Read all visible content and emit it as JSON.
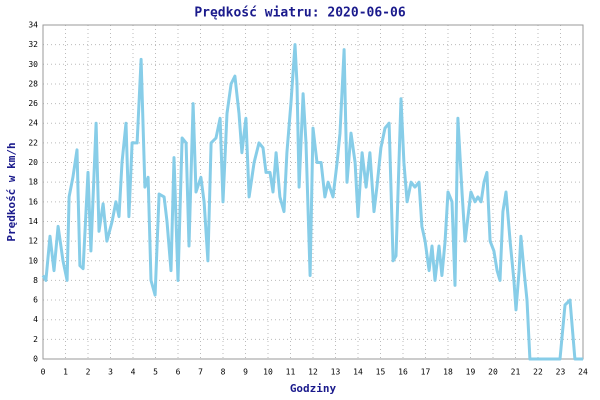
{
  "chart_data": {
    "type": "line",
    "title": "Prędkość wiatru: 2020-06-06",
    "xlabel": "Godziny",
    "ylabel": "Prędkość w km/h",
    "xlim": [
      0,
      24
    ],
    "ylim": [
      0,
      34
    ],
    "xticks": [
      0,
      1,
      2,
      3,
      4,
      5,
      6,
      7,
      8,
      9,
      10,
      11,
      12,
      13,
      14,
      15,
      16,
      17,
      18,
      19,
      20,
      21,
      22,
      23,
      24
    ],
    "yticks": [
      0,
      2,
      4,
      6,
      8,
      10,
      12,
      14,
      16,
      18,
      20,
      22,
      24,
      26,
      28,
      30,
      32,
      34
    ],
    "grid": true,
    "series": [
      {
        "color": "#87cde8",
        "x": [
          0,
          0.13,
          0.31,
          0.49,
          0.67,
          0.89,
          1.07,
          1.16,
          1.33,
          1.51,
          1.64,
          1.78,
          2.0,
          2.13,
          2.36,
          2.49,
          2.67,
          2.84,
          3.07,
          3.24,
          3.38,
          3.51,
          3.69,
          3.82,
          3.96,
          4.18,
          4.36,
          4.53,
          4.67,
          4.8,
          4.98,
          5.16,
          5.38,
          5.51,
          5.69,
          5.82,
          6.0,
          6.18,
          6.36,
          6.49,
          6.67,
          6.8,
          7.02,
          7.16,
          7.33,
          7.47,
          7.69,
          7.87,
          8.0,
          8.18,
          8.36,
          8.53,
          8.71,
          8.84,
          9.02,
          9.16,
          9.38,
          9.6,
          9.78,
          9.91,
          10.09,
          10.22,
          10.36,
          10.53,
          10.71,
          10.84,
          11.02,
          11.2,
          11.29,
          11.38,
          11.56,
          11.69,
          11.87,
          12.0,
          12.18,
          12.36,
          12.53,
          12.67,
          12.89,
          13.07,
          13.2,
          13.38,
          13.51,
          13.69,
          13.87,
          14.0,
          14.18,
          14.36,
          14.53,
          14.71,
          14.84,
          15.02,
          15.2,
          15.38,
          15.56,
          15.69,
          15.91,
          16.04,
          16.18,
          16.36,
          16.53,
          16.71,
          16.84,
          16.98,
          17.16,
          17.29,
          17.42,
          17.6,
          17.73,
          17.87,
          18.0,
          18.18,
          18.31,
          18.44,
          18.62,
          18.76,
          18.89,
          19.02,
          19.2,
          19.33,
          19.47,
          19.6,
          19.73,
          19.87,
          20.04,
          20.18,
          20.31,
          20.44,
          20.58,
          20.76,
          20.93,
          21.02,
          21.16,
          21.24,
          21.38,
          21.51,
          21.64,
          22.98,
          23.2,
          23.42,
          23.64,
          24
        ],
        "values": [
          8.5,
          8,
          12.5,
          9,
          13.5,
          10,
          8,
          16.5,
          18.5,
          21.3,
          9.5,
          9.2,
          19,
          11,
          24,
          13,
          15.8,
          12,
          14,
          16,
          14.5,
          20,
          24,
          14.5,
          22,
          22,
          30.5,
          17.5,
          18.5,
          8,
          6.5,
          16.8,
          16.5,
          14,
          9,
          20.5,
          8,
          22.5,
          22,
          11.5,
          26,
          17,
          18.5,
          16,
          10,
          22,
          22.5,
          24.5,
          16,
          25,
          28,
          28.8,
          25,
          21,
          24.5,
          16.5,
          20,
          22,
          21.5,
          19,
          19,
          17,
          21,
          16.5,
          15,
          21,
          26,
          32,
          28,
          17.5,
          27,
          22,
          8.5,
          23.5,
          20,
          20,
          16.5,
          18,
          16.5,
          20,
          23,
          31.5,
          18,
          23,
          20,
          14.5,
          21,
          17.5,
          21,
          15,
          17.5,
          21.5,
          23.5,
          24,
          10,
          10.5,
          26.5,
          20,
          16,
          18,
          17.5,
          18,
          13.5,
          12,
          9,
          11.5,
          8,
          11.5,
          8.5,
          12,
          17,
          16,
          7.5,
          24.5,
          17,
          12,
          14.5,
          17,
          16,
          16.5,
          16,
          18,
          19,
          12,
          11,
          9,
          8,
          15,
          17,
          12,
          8,
          5,
          9,
          12.5,
          9,
          6,
          0,
          0,
          5.5,
          6,
          0,
          0
        ]
      }
    ]
  }
}
